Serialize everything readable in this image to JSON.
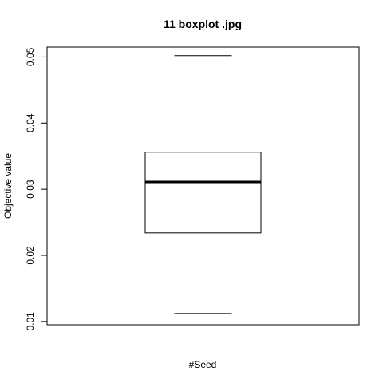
{
  "chart_data": {
    "type": "boxplot",
    "title": "11 boxplot .jpg",
    "xlabel": "#Seed",
    "ylabel": "Objective value",
    "ylim": [
      0.0095,
      0.0515
    ],
    "yticks": [
      0.01,
      0.02,
      0.03,
      0.04,
      0.05
    ],
    "ytick_labels": [
      "0.01",
      "0.02",
      "0.03",
      "0.04",
      "0.05"
    ],
    "box": {
      "min": 0.0112,
      "q1": 0.0234,
      "median": 0.0311,
      "q3": 0.0356,
      "max": 0.0502
    },
    "grid": false
  }
}
